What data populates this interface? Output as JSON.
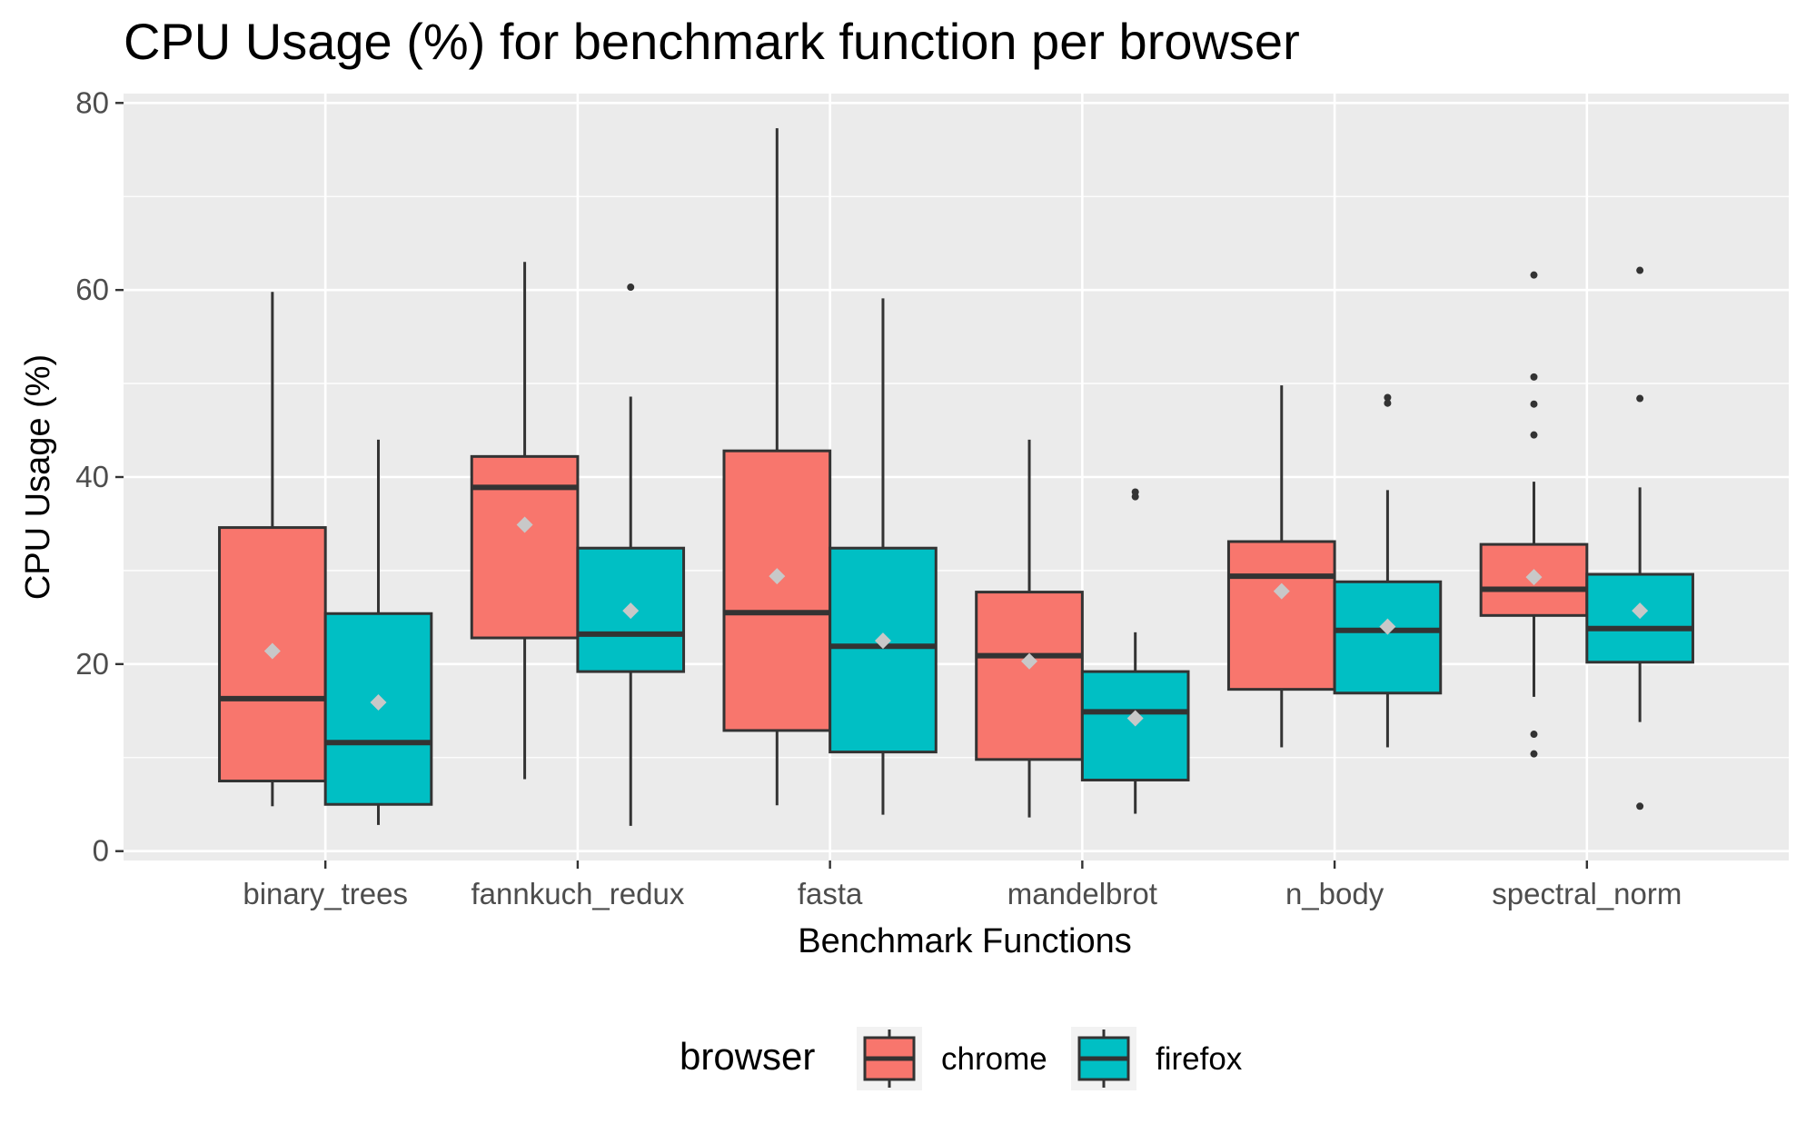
{
  "chart_data": {
    "type": "box",
    "title": "CPU Usage (%) for benchmark function per browser",
    "xlabel": "Benchmark Functions",
    "ylabel": "CPU Usage (%)",
    "ylim": [
      -1,
      81
    ],
    "yticks": [
      0,
      20,
      40,
      60,
      80
    ],
    "grid": true,
    "legend_position": "bottom",
    "categories": [
      "binary_trees",
      "fannkuch_redux",
      "fasta",
      "mandelbrot",
      "n_body",
      "spectral_norm"
    ],
    "legend": {
      "title": "browser",
      "entries": [
        "chrome",
        "firefox"
      ]
    },
    "series": [
      {
        "name": "chrome",
        "color": "#F8766D",
        "boxes": [
          {
            "min": 4.8,
            "q1": 7.5,
            "median": 16.3,
            "q3": 34.6,
            "max": 59.8,
            "mean": 21.4,
            "outliers": []
          },
          {
            "min": 7.7,
            "q1": 22.8,
            "median": 38.9,
            "q3": 42.2,
            "max": 63.0,
            "mean": 34.9,
            "outliers": []
          },
          {
            "min": 4.9,
            "q1": 12.9,
            "median": 25.5,
            "q3": 42.8,
            "max": 77.3,
            "mean": 29.4,
            "outliers": []
          },
          {
            "min": 3.6,
            "q1": 9.8,
            "median": 20.9,
            "q3": 27.7,
            "max": 44.0,
            "mean": 20.3,
            "outliers": []
          },
          {
            "min": 11.1,
            "q1": 17.3,
            "median": 29.4,
            "q3": 33.1,
            "max": 49.8,
            "mean": 27.8,
            "outliers": []
          },
          {
            "min": 16.5,
            "q1": 25.2,
            "median": 28.0,
            "q3": 32.8,
            "max": 39.5,
            "mean": 29.3,
            "outliers": [
              61.6,
              50.7,
              47.8,
              44.5,
              12.5,
              10.4
            ]
          }
        ]
      },
      {
        "name": "firefox",
        "color": "#00BFC4",
        "boxes": [
          {
            "min": 2.8,
            "q1": 5.0,
            "median": 11.6,
            "q3": 25.4,
            "max": 44.0,
            "mean": 15.9,
            "outliers": []
          },
          {
            "min": 2.7,
            "q1": 19.2,
            "median": 23.2,
            "q3": 32.4,
            "max": 48.6,
            "mean": 25.7,
            "outliers": [
              60.3
            ]
          },
          {
            "min": 3.9,
            "q1": 10.6,
            "median": 21.9,
            "q3": 32.4,
            "max": 59.1,
            "mean": 22.5,
            "outliers": []
          },
          {
            "min": 4.0,
            "q1": 7.6,
            "median": 14.9,
            "q3": 19.2,
            "max": 23.4,
            "mean": 14.2,
            "outliers": [
              38.4,
              37.9
            ]
          },
          {
            "min": 11.1,
            "q1": 16.9,
            "median": 23.6,
            "q3": 28.8,
            "max": 38.6,
            "mean": 24.0,
            "outliers": [
              48.5,
              47.9
            ]
          },
          {
            "min": 13.8,
            "q1": 20.2,
            "median": 23.8,
            "q3": 29.6,
            "max": 38.9,
            "mean": 25.7,
            "outliers": [
              62.1,
              48.4,
              4.8
            ]
          }
        ]
      }
    ]
  }
}
